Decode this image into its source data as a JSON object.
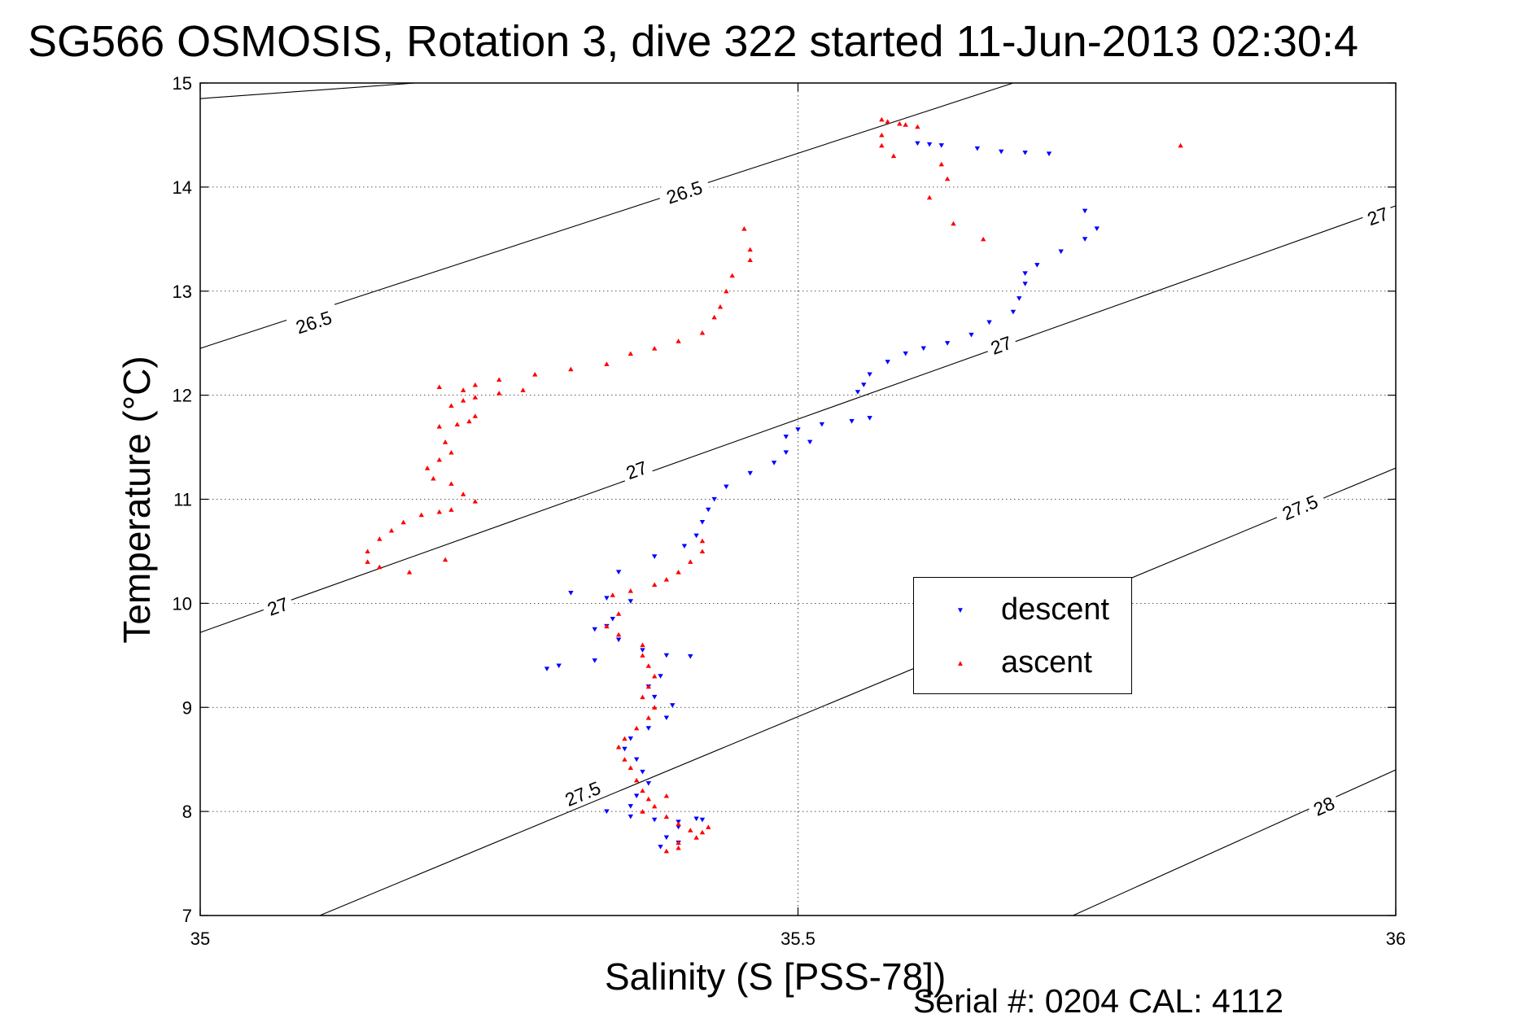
{
  "chart_data": {
    "type": "scatter",
    "title": "SG566 OSMOSIS, Rotation 3, dive 322 started 11-Jun-2013 02:30:4",
    "xlabel": "Salinity (S [PSS-78])",
    "ylabel": "Temperature (°C)",
    "footer": "Serial #: 0204  CAL: 4112",
    "xlim": [
      35,
      36
    ],
    "ylim": [
      7,
      15
    ],
    "xticks": [
      {
        "value": 35,
        "label": "35"
      },
      {
        "value": 35.5,
        "label": "35.5"
      },
      {
        "value": 36,
        "label": "36"
      }
    ],
    "yticks": [
      {
        "value": 7,
        "label": "7"
      },
      {
        "value": 8,
        "label": "8"
      },
      {
        "value": 9,
        "label": "9"
      },
      {
        "value": 10,
        "label": "10"
      },
      {
        "value": 11,
        "label": "11"
      },
      {
        "value": 12,
        "label": "12"
      },
      {
        "value": 13,
        "label": "13"
      },
      {
        "value": 14,
        "label": "14"
      },
      {
        "value": 15,
        "label": "15"
      }
    ],
    "grid": true,
    "legend_position": "center-right",
    "density_contours": [
      {
        "level": "26.5",
        "points": [
          [
            35.0,
            14.85
          ],
          [
            35.18,
            15.0
          ]
        ],
        "labels": []
      },
      {
        "level": "26.5",
        "points": [
          [
            35.0,
            12.45
          ],
          [
            35.68,
            15.0
          ]
        ],
        "labels": [
          {
            "x": 35.405,
            "y": 13.95
          },
          {
            "x": 35.095,
            "y": 12.7
          }
        ]
      },
      {
        "level": "27",
        "points": [
          [
            35.0,
            9.72
          ],
          [
            36.0,
            13.82
          ]
        ],
        "labels": [
          {
            "x": 35.985,
            "y": 13.72
          },
          {
            "x": 35.67,
            "y": 12.48
          },
          {
            "x": 35.365,
            "y": 11.28
          },
          {
            "x": 35.065,
            "y": 9.97
          }
        ]
      },
      {
        "level": "27.5",
        "points": [
          [
            35.1,
            7.0
          ],
          [
            36.0,
            11.3
          ]
        ],
        "labels": [
          {
            "x": 35.92,
            "y": 10.92
          },
          {
            "x": 35.32,
            "y": 8.17
          }
        ]
      },
      {
        "level": "28",
        "points": [
          [
            35.73,
            7.0
          ],
          [
            36.0,
            8.4
          ]
        ],
        "labels": [
          {
            "x": 35.94,
            "y": 8.05
          }
        ]
      }
    ],
    "series": [
      {
        "name": "descent",
        "color": "#0000ff",
        "marker": "triangle-down",
        "points": [
          [
            35.6,
            14.42
          ],
          [
            35.61,
            14.41
          ],
          [
            35.62,
            14.4
          ],
          [
            35.65,
            14.37
          ],
          [
            35.67,
            14.34
          ],
          [
            35.69,
            14.33
          ],
          [
            35.71,
            14.32
          ],
          [
            35.74,
            13.77
          ],
          [
            35.75,
            13.6
          ],
          [
            35.74,
            13.5
          ],
          [
            35.72,
            13.38
          ],
          [
            35.7,
            13.25
          ],
          [
            35.69,
            13.17
          ],
          [
            35.69,
            13.07
          ],
          [
            35.685,
            12.93
          ],
          [
            35.68,
            12.8
          ],
          [
            35.66,
            12.7
          ],
          [
            35.645,
            12.58
          ],
          [
            35.625,
            12.5
          ],
          [
            35.605,
            12.45
          ],
          [
            35.59,
            12.4
          ],
          [
            35.575,
            12.32
          ],
          [
            35.56,
            12.2
          ],
          [
            35.555,
            12.1
          ],
          [
            35.55,
            12.03
          ],
          [
            35.56,
            11.78
          ],
          [
            35.545,
            11.75
          ],
          [
            35.52,
            11.72
          ],
          [
            35.5,
            11.67
          ],
          [
            35.49,
            11.6
          ],
          [
            35.51,
            11.55
          ],
          [
            35.49,
            11.45
          ],
          [
            35.48,
            11.35
          ],
          [
            35.46,
            11.25
          ],
          [
            35.44,
            11.12
          ],
          [
            35.43,
            11.0
          ],
          [
            35.425,
            10.9
          ],
          [
            35.42,
            10.78
          ],
          [
            35.415,
            10.65
          ],
          [
            35.405,
            10.55
          ],
          [
            35.38,
            10.45
          ],
          [
            35.35,
            10.3
          ],
          [
            35.31,
            10.1
          ],
          [
            35.34,
            10.05
          ],
          [
            35.36,
            10.02
          ],
          [
            35.345,
            9.85
          ],
          [
            35.34,
            9.78
          ],
          [
            35.33,
            9.75
          ],
          [
            35.35,
            9.65
          ],
          [
            35.37,
            9.55
          ],
          [
            35.39,
            9.5
          ],
          [
            35.41,
            9.49
          ],
          [
            35.33,
            9.45
          ],
          [
            35.3,
            9.4
          ],
          [
            35.29,
            9.37
          ],
          [
            35.385,
            9.3
          ],
          [
            35.375,
            9.2
          ],
          [
            35.38,
            9.1
          ],
          [
            35.395,
            9.02
          ],
          [
            35.39,
            8.9
          ],
          [
            35.375,
            8.8
          ],
          [
            35.36,
            8.7
          ],
          [
            35.355,
            8.6
          ],
          [
            35.365,
            8.5
          ],
          [
            35.37,
            8.38
          ],
          [
            35.375,
            8.27
          ],
          [
            35.365,
            8.15
          ],
          [
            35.36,
            8.05
          ],
          [
            35.34,
            8.0
          ],
          [
            35.36,
            7.95
          ],
          [
            35.38,
            7.92
          ],
          [
            35.4,
            7.9
          ],
          [
            35.415,
            7.93
          ],
          [
            35.42,
            7.92
          ],
          [
            35.4,
            7.85
          ],
          [
            35.39,
            7.75
          ],
          [
            35.385,
            7.66
          ],
          [
            35.4,
            7.7
          ]
        ]
      },
      {
        "name": "ascent",
        "color": "#ff0000",
        "marker": "triangle-up",
        "points": [
          [
            35.57,
            14.65
          ],
          [
            35.575,
            14.63
          ],
          [
            35.585,
            14.61
          ],
          [
            35.59,
            14.6
          ],
          [
            35.6,
            14.58
          ],
          [
            35.57,
            14.5
          ],
          [
            35.57,
            14.4
          ],
          [
            35.58,
            14.3
          ],
          [
            35.62,
            14.22
          ],
          [
            35.625,
            14.08
          ],
          [
            35.61,
            13.9
          ],
          [
            35.63,
            13.65
          ],
          [
            35.655,
            13.5
          ],
          [
            35.82,
            14.4
          ],
          [
            35.455,
            13.6
          ],
          [
            35.46,
            13.4
          ],
          [
            35.46,
            13.3
          ],
          [
            35.445,
            13.15
          ],
          [
            35.44,
            13.0
          ],
          [
            35.435,
            12.85
          ],
          [
            35.43,
            12.75
          ],
          [
            35.42,
            12.6
          ],
          [
            35.4,
            12.52
          ],
          [
            35.38,
            12.45
          ],
          [
            35.36,
            12.4
          ],
          [
            35.34,
            12.3
          ],
          [
            35.31,
            12.25
          ],
          [
            35.28,
            12.2
          ],
          [
            35.25,
            12.15
          ],
          [
            35.23,
            12.1
          ],
          [
            35.22,
            12.05
          ],
          [
            35.2,
            12.08
          ],
          [
            35.27,
            12.05
          ],
          [
            35.25,
            12.02
          ],
          [
            35.23,
            11.98
          ],
          [
            35.22,
            11.95
          ],
          [
            35.21,
            11.9
          ],
          [
            35.23,
            11.8
          ],
          [
            35.225,
            11.75
          ],
          [
            35.215,
            11.72
          ],
          [
            35.2,
            11.7
          ],
          [
            35.205,
            11.55
          ],
          [
            35.21,
            11.45
          ],
          [
            35.2,
            11.38
          ],
          [
            35.19,
            11.3
          ],
          [
            35.195,
            11.2
          ],
          [
            35.21,
            11.15
          ],
          [
            35.22,
            11.05
          ],
          [
            35.23,
            10.98
          ],
          [
            35.21,
            10.9
          ],
          [
            35.2,
            10.88
          ],
          [
            35.185,
            10.85
          ],
          [
            35.17,
            10.78
          ],
          [
            35.16,
            10.7
          ],
          [
            35.15,
            10.62
          ],
          [
            35.14,
            10.5
          ],
          [
            35.14,
            10.4
          ],
          [
            35.15,
            10.35
          ],
          [
            35.175,
            10.3
          ],
          [
            35.205,
            10.42
          ],
          [
            35.42,
            10.6
          ],
          [
            35.42,
            10.5
          ],
          [
            35.41,
            10.4
          ],
          [
            35.4,
            10.3
          ],
          [
            35.39,
            10.23
          ],
          [
            35.38,
            10.18
          ],
          [
            35.36,
            10.12
          ],
          [
            35.345,
            10.08
          ],
          [
            35.35,
            9.9
          ],
          [
            35.34,
            9.78
          ],
          [
            35.35,
            9.7
          ],
          [
            35.37,
            9.6
          ],
          [
            35.37,
            9.5
          ],
          [
            35.375,
            9.4
          ],
          [
            35.38,
            9.3
          ],
          [
            35.375,
            9.2
          ],
          [
            35.37,
            9.1
          ],
          [
            35.38,
            9.0
          ],
          [
            35.375,
            8.9
          ],
          [
            35.365,
            8.8
          ],
          [
            35.355,
            8.7
          ],
          [
            35.35,
            8.62
          ],
          [
            35.355,
            8.5
          ],
          [
            35.36,
            8.42
          ],
          [
            35.365,
            8.3
          ],
          [
            35.37,
            8.2
          ],
          [
            35.375,
            8.12
          ],
          [
            35.39,
            8.15
          ],
          [
            35.38,
            8.05
          ],
          [
            35.37,
            8.0
          ],
          [
            35.39,
            7.95
          ],
          [
            35.4,
            7.88
          ],
          [
            35.41,
            7.82
          ],
          [
            35.42,
            7.8
          ],
          [
            35.425,
            7.85
          ],
          [
            35.415,
            7.75
          ],
          [
            35.4,
            7.7
          ],
          [
            35.39,
            7.62
          ],
          [
            35.4,
            7.65
          ]
        ]
      }
    ]
  }
}
